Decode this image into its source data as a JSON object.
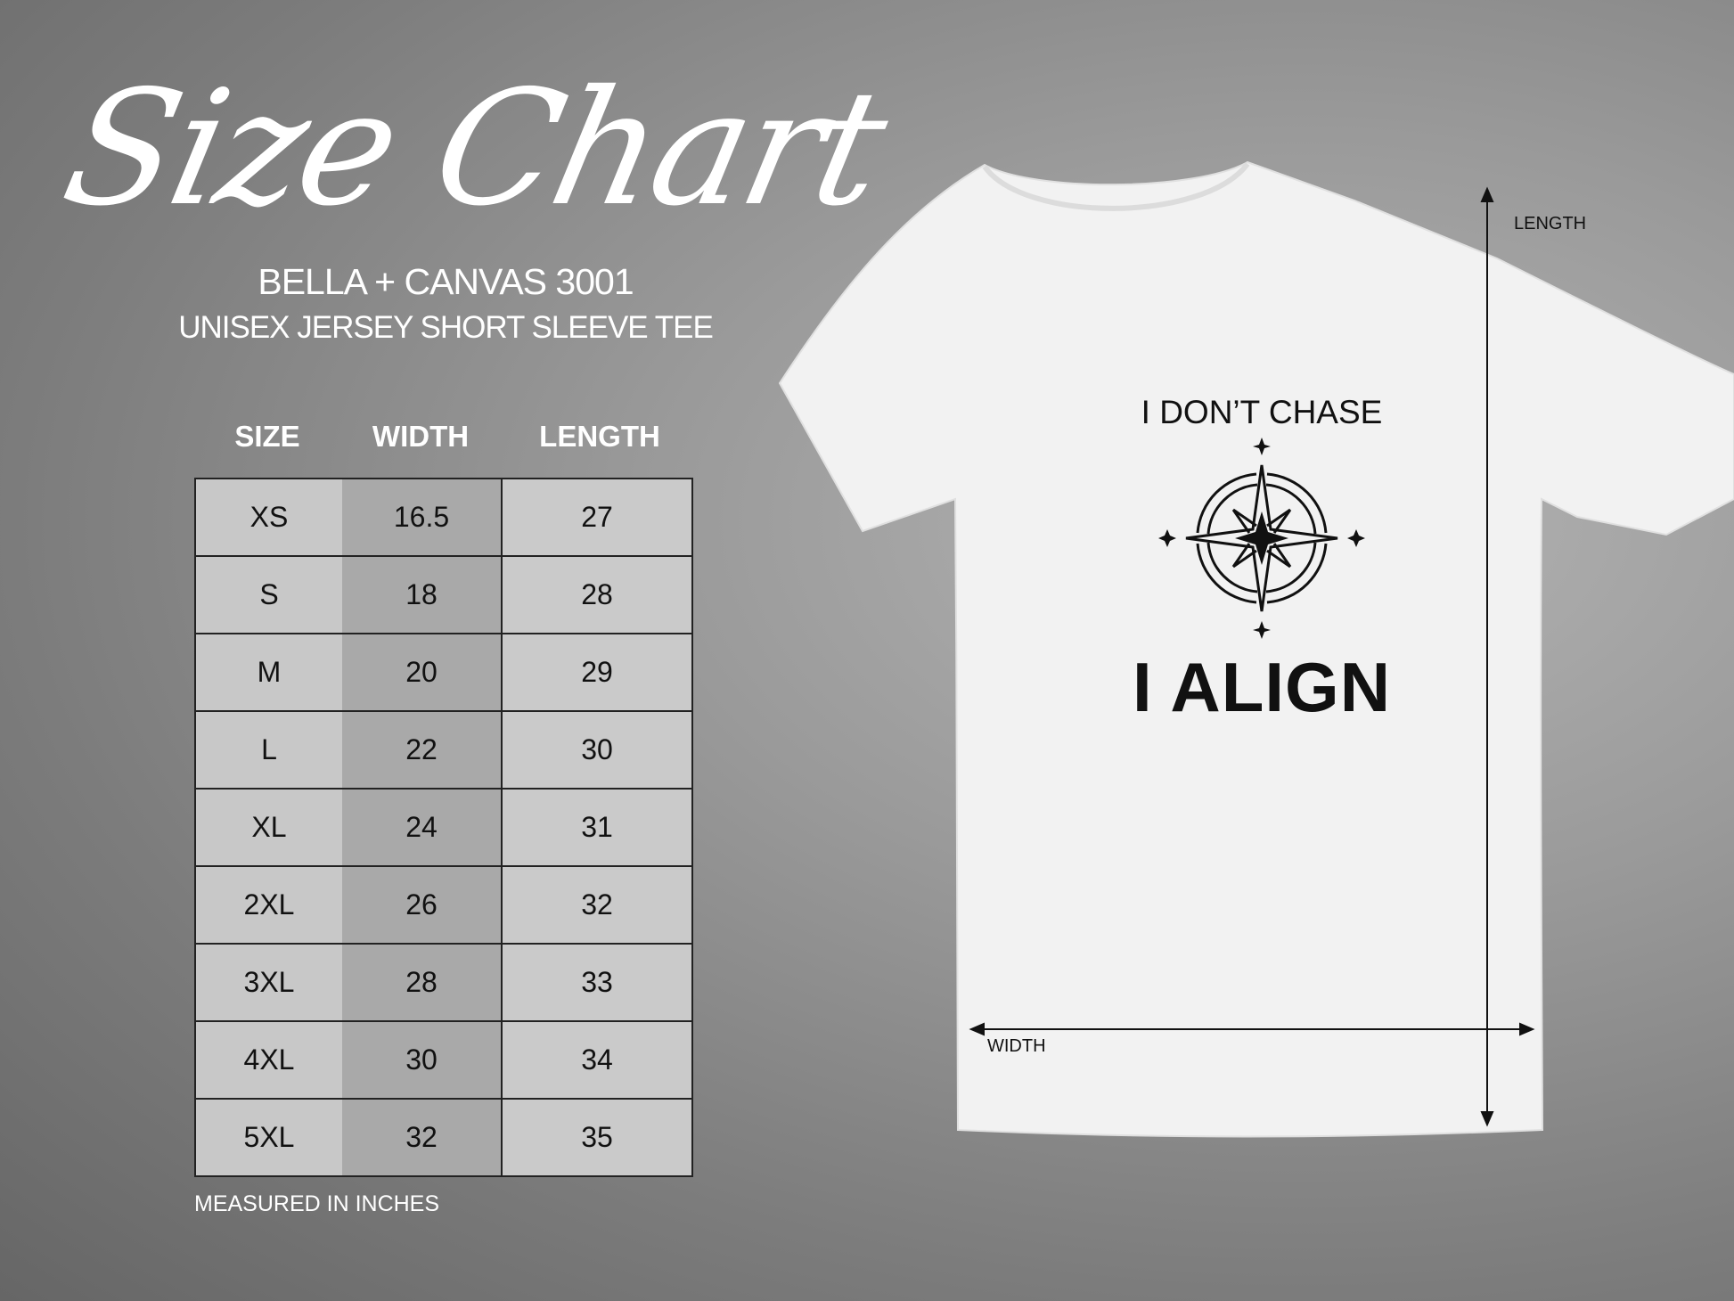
{
  "title": "Size Chart",
  "brand": "BELLA + CANVAS 3001",
  "product": "UNISEX JERSEY SHORT SLEEVE TEE",
  "table": {
    "headers": [
      "SIZE",
      "WIDTH",
      "LENGTH"
    ],
    "rows": [
      [
        "XS",
        "16.5",
        "27"
      ],
      [
        "S",
        "18",
        "28"
      ],
      [
        "M",
        "20",
        "29"
      ],
      [
        "L",
        "22",
        "30"
      ],
      [
        "XL",
        "24",
        "31"
      ],
      [
        "2XL",
        "26",
        "32"
      ],
      [
        "3XL",
        "28",
        "33"
      ],
      [
        "4XL",
        "30",
        "34"
      ],
      [
        "5XL",
        "32",
        "35"
      ]
    ]
  },
  "note": "MEASURED IN INCHES",
  "shirt": {
    "design_top": "I DON’T CHASE",
    "design_bottom": "I ALIGN",
    "design_icon": "compass-rose-icon",
    "length_label": "LENGTH",
    "width_label": "WIDTH",
    "color": "#f2f2f2"
  }
}
